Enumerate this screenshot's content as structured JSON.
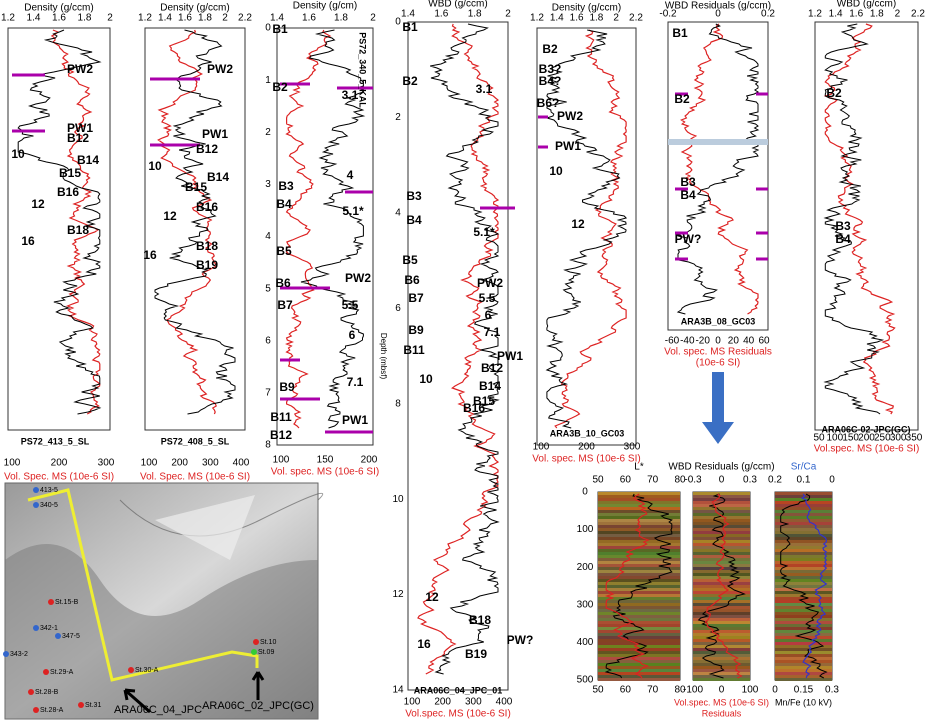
{
  "panels": [
    {
      "top_label": "Density (g/ccm)",
      "top_ticks": [
        "1.2",
        "1.4",
        "1.6",
        "1.8",
        "2"
      ],
      "core": "PS72_413_5_SL",
      "bottom_ticks": [
        "100",
        "200",
        "300"
      ],
      "bottom_label": [
        "Vol. Spec. MS (10e-6 SI)"
      ],
      "labels": [
        "PW2",
        "PW1",
        "B12",
        "10",
        "B14",
        "B15",
        "B16",
        "12",
        "B18",
        "16"
      ]
    },
    {
      "top_label": "Density (g/ccm)",
      "top_ticks": [
        "1.2",
        "1.4",
        "1.6",
        "1.8",
        "2",
        "2.2"
      ],
      "core": "PS72_408_5_SL",
      "bottom_ticks": [
        "100",
        "200",
        "300",
        "400"
      ],
      "bottom_label": [
        "Vol. Spec. MS (10e-6 SI)"
      ],
      "labels": [
        "PW2",
        "PW1",
        "B12",
        "10",
        "B14",
        "B15",
        "B16",
        "12",
        "B18",
        "16",
        "B19"
      ]
    },
    {
      "top_label": "Density (g/cm)",
      "top_ticks": [
        "1.4",
        "1.6",
        "1.8",
        "2"
      ],
      "depth_ticks": [
        "0",
        "1",
        "2",
        "3",
        "4",
        "5",
        "6",
        "7",
        "8"
      ],
      "core": "PS72_340_5_KAL",
      "bottom_ticks": [
        "100",
        "150",
        "200"
      ],
      "bottom_label": [
        "Vol. spec. MS (10e-6 SI)"
      ],
      "labels": [
        "B1",
        "B2",
        "3.1",
        "B3",
        "4",
        "B4",
        "5.1*",
        "B5",
        "PW2",
        "B6",
        "5.5",
        "B7",
        "6",
        "B9",
        "7.1",
        "B11",
        "PW1",
        "B12"
      ]
    },
    {
      "top_label": "WBD (g/ccm)",
      "top_ticks": [
        "1.4",
        "1.6",
        "1.8",
        "2"
      ],
      "depth_label": "Depth (mbsf)",
      "depth_ticks": [
        "0",
        "2",
        "4",
        "6",
        "8",
        "10",
        "12",
        "14"
      ],
      "core": "ARA06C_04_JPC_01",
      "bottom_ticks": [
        "100",
        "200",
        "300",
        "400"
      ],
      "bottom_label": [
        "Vol.spec. MS (10e-6 SI)"
      ],
      "labels": [
        "B1",
        "B2",
        "3.1",
        "B3",
        "B4",
        "5.1*",
        "B5",
        "B6",
        "PW2",
        "B7",
        "5.5",
        "6",
        "B9",
        "7.1",
        "B11",
        "PW1",
        "B12",
        "10",
        "B14",
        "B15",
        "B16",
        "12",
        "B18",
        "PW?",
        "16",
        "B19"
      ]
    },
    {
      "top_label": "Density (g/ccm)",
      "top_ticks": [
        "1.2",
        "1.4",
        "1.6",
        "1.8",
        "2",
        "2.2"
      ],
      "core": "ARA3B_10_GC03",
      "bottom_ticks": [
        "100",
        "200",
        "300"
      ],
      "bottom_label": [
        "Vol. spec. MS (10e-6 SI)"
      ],
      "labels": [
        "B2",
        "B3?",
        "B4?",
        "B6?",
        "PW2",
        "PW1",
        "10",
        "12"
      ]
    },
    {
      "top_label": "WBD Residuals (g/ccm)",
      "top_ticks": [
        "-0.2",
        "0",
        "0.2"
      ],
      "core": "ARA3B_08_GC03",
      "bottom_ticks": [
        "-60",
        "-40",
        "-20",
        "0",
        "20",
        "40",
        "60"
      ],
      "bottom_label": [
        "Vol. spec. MS Residuals",
        "(10e-6 SI)"
      ],
      "labels": [
        "B1",
        "B2",
        "B3",
        "B4",
        "PW?"
      ]
    },
    {
      "top_label": "WBD (g/ccm)",
      "top_ticks": [
        "1.2",
        "1.4",
        "1.6",
        "1.8",
        "2",
        "2.2"
      ],
      "core": "ARA06C-02-JPC(GC)",
      "bottom_ticks": [
        "50",
        "100",
        "150",
        "200",
        "250",
        "300",
        "350"
      ],
      "bottom_label": [
        "Vol.spec. MS (10e-6 SI)"
      ],
      "labels": [
        "B2",
        "B3",
        "B4"
      ]
    }
  ],
  "insets": [
    {
      "top_label": "L*",
      "top_ticks": [
        "50",
        "60",
        "70",
        "80"
      ],
      "depth_ticks": [
        "0",
        "100",
        "200",
        "300",
        "400",
        "500"
      ],
      "bottom_ticks": [
        "50",
        "60",
        "70",
        "80"
      ],
      "bottom_label": []
    },
    {
      "top_label": "WBD Residuals (g/ccm)",
      "top_ticks": [
        "-0.3",
        "0",
        "0.3"
      ],
      "bottom_ticks": [
        "-100",
        "0",
        "100"
      ],
      "bottom_label": [
        "Vol.spec. MS (10e-6 SI)",
        "Residuals"
      ]
    },
    {
      "top_label": "Sr/Ca",
      "top_ticks": [
        "0.2",
        "0.1",
        "0"
      ],
      "bottom_ticks": [
        "0",
        "0.15",
        "0.3"
      ],
      "bottom_label": [
        "Mn/Fe (10 kV)"
      ]
    }
  ],
  "map": {
    "stations": [
      "413-5",
      "340-5",
      "343-2",
      "342-1",
      "347-5",
      "St.15-B",
      "St.29-A",
      "St.28-B",
      "St.28-A",
      "St.31",
      "St.30-A",
      "St.10",
      "St.09"
    ],
    "cores": [
      "ARA06C_04_JPC",
      "ARA06C_02_JPC(GC)"
    ]
  }
}
